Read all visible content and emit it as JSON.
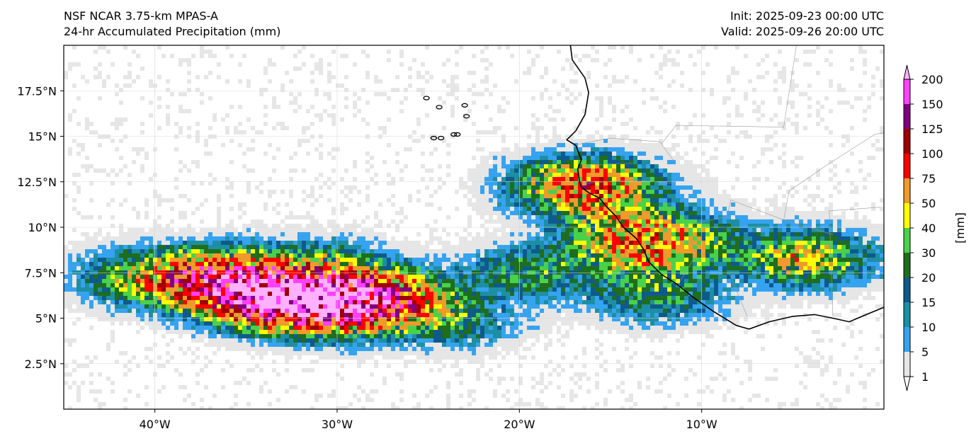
{
  "header": {
    "model_line": "NSF NCAR 3.75-km MPAS-A",
    "field_line": "24-hr Accumulated Precipitation (mm)",
    "init_line": "Init: 2025-09-23 00:00 UTC",
    "valid_line": "Valid: 2025-09-26 20:00 UTC"
  },
  "map": {
    "lon_range": [
      -45,
      0
    ],
    "lat_range": [
      0,
      20
    ],
    "lon_ticks": [
      {
        "value": -40,
        "label": "40°W"
      },
      {
        "value": -30,
        "label": "30°W"
      },
      {
        "value": -20,
        "label": "20°W"
      },
      {
        "value": -10,
        "label": "10°W"
      }
    ],
    "lat_ticks": [
      {
        "value": 2.5,
        "label": "2.5°N"
      },
      {
        "value": 5,
        "label": "5°N"
      },
      {
        "value": 7.5,
        "label": "7.5°N"
      },
      {
        "value": 10,
        "label": "10°N"
      },
      {
        "value": 12.5,
        "label": "12.5°N"
      },
      {
        "value": 15,
        "label": "15°N"
      },
      {
        "value": 17.5,
        "label": "17.5°N"
      }
    ],
    "gridlines": true,
    "coastline": [
      [
        -17.2,
        20
      ],
      [
        -17.1,
        19.2
      ],
      [
        -16.4,
        18.2
      ],
      [
        -16.2,
        17.4
      ],
      [
        -16.4,
        16.2
      ],
      [
        -16.9,
        15.3
      ],
      [
        -17.4,
        14.8
      ],
      [
        -16.9,
        14.5
      ],
      [
        -16.6,
        13.7
      ],
      [
        -16.8,
        13.2
      ],
      [
        -16.7,
        12.5
      ],
      [
        -16.6,
        12.2
      ],
      [
        -16.2,
        11.9
      ],
      [
        -15.6,
        11.6
      ],
      [
        -15.2,
        11.1
      ],
      [
        -14.7,
        10.6
      ],
      [
        -14.3,
        10.0
      ],
      [
        -13.6,
        9.4
      ],
      [
        -13.2,
        8.8
      ],
      [
        -12.9,
        8.1
      ],
      [
        -12.2,
        7.4
      ],
      [
        -11.4,
        6.9
      ],
      [
        -10.4,
        6.1
      ],
      [
        -9.4,
        5.4
      ],
      [
        -8.1,
        4.6
      ],
      [
        -7.4,
        4.4
      ],
      [
        -6.3,
        4.8
      ],
      [
        -5.0,
        5.1
      ],
      [
        -3.8,
        5.2
      ],
      [
        -2.8,
        5.0
      ],
      [
        -1.9,
        4.8
      ],
      [
        -1.2,
        5.1
      ],
      [
        0,
        5.6
      ]
    ],
    "cape_verde": [
      [
        -25.1,
        17.1
      ],
      [
        -24.4,
        16.6
      ],
      [
        -23.6,
        15.1
      ],
      [
        -23.0,
        16.7
      ],
      [
        -22.9,
        16.1
      ],
      [
        -24.7,
        14.9
      ],
      [
        -24.3,
        14.9
      ],
      [
        -23.4,
        15.1
      ]
    ],
    "borders": [
      [
        [
          -17.1,
          14.5
        ],
        [
          -15.0,
          14.9
        ],
        [
          -12.3,
          14.7
        ],
        [
          -11.5,
          13.6
        ]
      ],
      [
        [
          -16.6,
          13.4
        ],
        [
          -14.5,
          13.5
        ],
        [
          -13.8,
          13.5
        ]
      ],
      [
        [
          -16.7,
          12.4
        ],
        [
          -13.7,
          12.6
        ],
        [
          -11.5,
          12.4
        ]
      ],
      [
        [
          -15.0,
          11.0
        ],
        [
          -13.6,
          12.0
        ]
      ],
      [
        [
          -13.3,
          9.1
        ],
        [
          -10.6,
          9.3
        ],
        [
          -10.3,
          8.5
        ],
        [
          -11.2,
          7.0
        ]
      ],
      [
        [
          -11.2,
          10.0
        ],
        [
          -8.6,
          10.6
        ],
        [
          -8.4,
          11.5
        ],
        [
          -5.5,
          10.4
        ],
        [
          -2.8,
          9.6
        ]
      ],
      [
        [
          -8.5,
          7.5
        ],
        [
          -7.5,
          5.1
        ]
      ],
      [
        [
          -2.8,
          5.1
        ],
        [
          -3.0,
          10.9
        ],
        [
          -0.2,
          11.1
        ]
      ],
      [
        [
          -12.2,
          14.6
        ],
        [
          -11.4,
          15.6
        ],
        [
          -5.5,
          15.5
        ],
        [
          -4.8,
          20
        ]
      ],
      [
        [
          -5.5,
          10.4
        ],
        [
          -5.2,
          12.0
        ],
        [
          -3.0,
          13.5
        ],
        [
          -0.5,
          15.1
        ],
        [
          0,
          15.2
        ]
      ]
    ]
  },
  "precip_cores": [
    {
      "lon": -41,
      "lat": 7.4,
      "v": 30
    },
    {
      "lon": -38,
      "lat": 7.2,
      "v": 60
    },
    {
      "lon": -35,
      "lat": 6.6,
      "v": 90
    },
    {
      "lon": -33,
      "lat": 6.2,
      "v": 160
    },
    {
      "lon": -31,
      "lat": 5.9,
      "v": 110
    },
    {
      "lon": -29,
      "lat": 6.0,
      "v": 90
    },
    {
      "lon": -27.5,
      "lat": 6.3,
      "v": 70
    },
    {
      "lon": -36,
      "lat": 7.6,
      "v": 45
    },
    {
      "lon": -31,
      "lat": 7.8,
      "v": 35
    },
    {
      "lon": -16.5,
      "lat": 12.4,
      "v": 90
    },
    {
      "lon": -13.5,
      "lat": 8.9,
      "v": 60
    },
    {
      "lon": -14.5,
      "lat": 10.5,
      "v": 35
    },
    {
      "lon": -4.5,
      "lat": 8.4,
      "v": 55
    },
    {
      "lon": -19.5,
      "lat": 7.6,
      "v": 30
    },
    {
      "lon": -12.5,
      "lat": 6.4,
      "v": 30
    },
    {
      "lon": -24,
      "lat": 5.0,
      "v": 25
    },
    {
      "lon": -11,
      "lat": 9.3,
      "v": 30
    }
  ],
  "colorbar": {
    "unit_label": "[mm]",
    "levels": [
      1,
      5,
      10,
      15,
      20,
      30,
      40,
      50,
      75,
      100,
      125,
      150,
      200
    ],
    "colors": [
      "#e6e6e6",
      "#36a3f0",
      "#1e8fa3",
      "#0f5a8c",
      "#1e6e1e",
      "#4ad14a",
      "#ffff00",
      "#ef9a2a",
      "#ff0000",
      "#a00000",
      "#800080",
      "#ff40ff"
    ],
    "over_color": "#ffb0ff",
    "under_color": "#ffffff"
  }
}
